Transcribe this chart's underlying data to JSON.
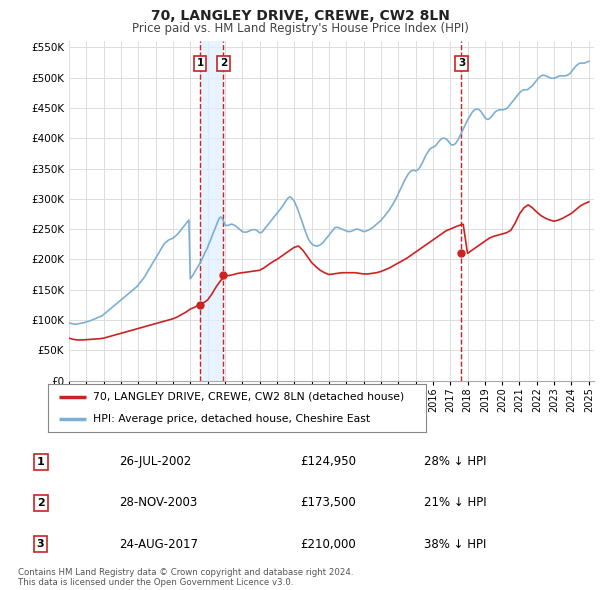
{
  "title": "70, LANGLEY DRIVE, CREWE, CW2 8LN",
  "subtitle": "Price paid vs. HM Land Registry's House Price Index (HPI)",
  "ylim": [
    0,
    560000
  ],
  "yticks": [
    0,
    50000,
    100000,
    150000,
    200000,
    250000,
    300000,
    350000,
    400000,
    450000,
    500000,
    550000
  ],
  "xlim_start": 1995.0,
  "xlim_end": 2025.3,
  "hpi_color": "#7bafd4",
  "price_color": "#cc2222",
  "vline_color": "#cc2222",
  "shade_color": "#ddeeff",
  "background_color": "#ffffff",
  "grid_color": "#dddddd",
  "legend_label_price": "70, LANGLEY DRIVE, CREWE, CW2 8LN (detached house)",
  "legend_label_hpi": "HPI: Average price, detached house, Cheshire East",
  "transactions": [
    {
      "num": 1,
      "date_dec": 2002.57,
      "price": 124950,
      "label": "26-JUL-2002",
      "amount": "£124,950",
      "pct": "28% ↓ HPI"
    },
    {
      "num": 2,
      "date_dec": 2003.91,
      "price": 173500,
      "label": "28-NOV-2003",
      "amount": "£173,500",
      "pct": "21% ↓ HPI"
    },
    {
      "num": 3,
      "date_dec": 2017.65,
      "price": 210000,
      "label": "24-AUG-2017",
      "amount": "£210,000",
      "pct": "38% ↓ HPI"
    }
  ],
  "footnote": "Contains HM Land Registry data © Crown copyright and database right 2024.\nThis data is licensed under the Open Government Licence v3.0.",
  "hpi_data_x": [
    1995.0,
    1995.08,
    1995.17,
    1995.25,
    1995.33,
    1995.42,
    1995.5,
    1995.58,
    1995.67,
    1995.75,
    1995.83,
    1995.92,
    1996.0,
    1996.08,
    1996.17,
    1996.25,
    1996.33,
    1996.42,
    1996.5,
    1996.58,
    1996.67,
    1996.75,
    1996.83,
    1996.92,
    1997.0,
    1997.08,
    1997.17,
    1997.25,
    1997.33,
    1997.42,
    1997.5,
    1997.58,
    1997.67,
    1997.75,
    1997.83,
    1997.92,
    1998.0,
    1998.08,
    1998.17,
    1998.25,
    1998.33,
    1998.42,
    1998.5,
    1998.58,
    1998.67,
    1998.75,
    1998.83,
    1998.92,
    1999.0,
    1999.08,
    1999.17,
    1999.25,
    1999.33,
    1999.42,
    1999.5,
    1999.58,
    1999.67,
    1999.75,
    1999.83,
    1999.92,
    2000.0,
    2000.08,
    2000.17,
    2000.25,
    2000.33,
    2000.42,
    2000.5,
    2000.58,
    2000.67,
    2000.75,
    2000.83,
    2000.92,
    2001.0,
    2001.08,
    2001.17,
    2001.25,
    2001.33,
    2001.42,
    2001.5,
    2001.58,
    2001.67,
    2001.75,
    2001.83,
    2001.92,
    2002.0,
    2002.08,
    2002.17,
    2002.25,
    2002.33,
    2002.42,
    2002.5,
    2002.58,
    2002.67,
    2002.75,
    2002.83,
    2002.92,
    2003.0,
    2003.08,
    2003.17,
    2003.25,
    2003.33,
    2003.42,
    2003.5,
    2003.58,
    2003.67,
    2003.75,
    2003.83,
    2003.92,
    2004.0,
    2004.08,
    2004.17,
    2004.25,
    2004.33,
    2004.42,
    2004.5,
    2004.58,
    2004.67,
    2004.75,
    2004.83,
    2004.92,
    2005.0,
    2005.08,
    2005.17,
    2005.25,
    2005.33,
    2005.42,
    2005.5,
    2005.58,
    2005.67,
    2005.75,
    2005.83,
    2005.92,
    2006.0,
    2006.08,
    2006.17,
    2006.25,
    2006.33,
    2006.42,
    2006.5,
    2006.58,
    2006.67,
    2006.75,
    2006.83,
    2006.92,
    2007.0,
    2007.08,
    2007.17,
    2007.25,
    2007.33,
    2007.42,
    2007.5,
    2007.58,
    2007.67,
    2007.75,
    2007.83,
    2007.92,
    2008.0,
    2008.08,
    2008.17,
    2008.25,
    2008.33,
    2008.42,
    2008.5,
    2008.58,
    2008.67,
    2008.75,
    2008.83,
    2008.92,
    2009.0,
    2009.08,
    2009.17,
    2009.25,
    2009.33,
    2009.42,
    2009.5,
    2009.58,
    2009.67,
    2009.75,
    2009.83,
    2009.92,
    2010.0,
    2010.08,
    2010.17,
    2010.25,
    2010.33,
    2010.42,
    2010.5,
    2010.58,
    2010.67,
    2010.75,
    2010.83,
    2010.92,
    2011.0,
    2011.08,
    2011.17,
    2011.25,
    2011.33,
    2011.42,
    2011.5,
    2011.58,
    2011.67,
    2011.75,
    2011.83,
    2011.92,
    2012.0,
    2012.08,
    2012.17,
    2012.25,
    2012.33,
    2012.42,
    2012.5,
    2012.58,
    2012.67,
    2012.75,
    2012.83,
    2012.92,
    2013.0,
    2013.08,
    2013.17,
    2013.25,
    2013.33,
    2013.42,
    2013.5,
    2013.58,
    2013.67,
    2013.75,
    2013.83,
    2013.92,
    2014.0,
    2014.08,
    2014.17,
    2014.25,
    2014.33,
    2014.42,
    2014.5,
    2014.58,
    2014.67,
    2014.75,
    2014.83,
    2014.92,
    2015.0,
    2015.08,
    2015.17,
    2015.25,
    2015.33,
    2015.42,
    2015.5,
    2015.58,
    2015.67,
    2015.75,
    2015.83,
    2015.92,
    2016.0,
    2016.08,
    2016.17,
    2016.25,
    2016.33,
    2016.42,
    2016.5,
    2016.58,
    2016.67,
    2016.75,
    2016.83,
    2016.92,
    2017.0,
    2017.08,
    2017.17,
    2017.25,
    2017.33,
    2017.42,
    2017.5,
    2017.58,
    2017.67,
    2017.75,
    2017.83,
    2017.92,
    2018.0,
    2018.08,
    2018.17,
    2018.25,
    2018.33,
    2018.42,
    2018.5,
    2018.58,
    2018.67,
    2018.75,
    2018.83,
    2018.92,
    2019.0,
    2019.08,
    2019.17,
    2019.25,
    2019.33,
    2019.42,
    2019.5,
    2019.58,
    2019.67,
    2019.75,
    2019.83,
    2019.92,
    2020.0,
    2020.08,
    2020.17,
    2020.25,
    2020.33,
    2020.42,
    2020.5,
    2020.58,
    2020.67,
    2020.75,
    2020.83,
    2020.92,
    2021.0,
    2021.08,
    2021.17,
    2021.25,
    2021.33,
    2021.42,
    2021.5,
    2021.58,
    2021.67,
    2021.75,
    2021.83,
    2021.92,
    2022.0,
    2022.08,
    2022.17,
    2022.25,
    2022.33,
    2022.42,
    2022.5,
    2022.58,
    2022.67,
    2022.75,
    2022.83,
    2022.92,
    2023.0,
    2023.08,
    2023.17,
    2023.25,
    2023.33,
    2023.42,
    2023.5,
    2023.58,
    2023.67,
    2023.75,
    2023.83,
    2023.92,
    2024.0,
    2024.08,
    2024.17,
    2024.25,
    2024.33,
    2024.42,
    2024.5,
    2024.58,
    2024.67,
    2024.75,
    2024.83,
    2024.92,
    2025.0
  ],
  "hpi_data_y": [
    95000,
    94500,
    94000,
    93500,
    93000,
    93000,
    93500,
    94000,
    94500,
    95000,
    95500,
    96000,
    97000,
    97500,
    98000,
    99000,
    100000,
    101000,
    102000,
    103000,
    104000,
    105000,
    106000,
    107000,
    109000,
    111000,
    113000,
    115000,
    117000,
    119000,
    121000,
    123000,
    125000,
    127000,
    129000,
    131000,
    133000,
    135000,
    137000,
    139000,
    141000,
    143000,
    145000,
    147000,
    149000,
    151000,
    153000,
    155000,
    158000,
    161000,
    164000,
    167000,
    170000,
    174000,
    178000,
    182000,
    186000,
    190000,
    194000,
    198000,
    202000,
    206000,
    210000,
    214000,
    218000,
    222000,
    226000,
    228000,
    230000,
    232000,
    233000,
    234000,
    235000,
    237000,
    239000,
    241000,
    244000,
    247000,
    250000,
    253000,
    256000,
    259000,
    262000,
    265000,
    168000,
    171000,
    175000,
    179000,
    183000,
    187000,
    191000,
    195000,
    200000,
    205000,
    210000,
    215000,
    220000,
    226000,
    232000,
    238000,
    244000,
    250000,
    256000,
    262000,
    268000,
    270000,
    268000,
    263000,
    257000,
    256000,
    256000,
    257000,
    258000,
    258000,
    257000,
    256000,
    254000,
    252000,
    250000,
    248000,
    246000,
    245000,
    245000,
    245000,
    246000,
    247000,
    248000,
    249000,
    249000,
    249000,
    248000,
    246000,
    244000,
    244000,
    246000,
    249000,
    252000,
    255000,
    258000,
    261000,
    264000,
    267000,
    270000,
    273000,
    276000,
    279000,
    282000,
    285000,
    288000,
    292000,
    296000,
    299000,
    302000,
    303000,
    302000,
    299000,
    296000,
    291000,
    285000,
    279000,
    272000,
    265000,
    258000,
    251000,
    244000,
    238000,
    233000,
    229000,
    226000,
    224000,
    223000,
    222000,
    222000,
    223000,
    224000,
    226000,
    228000,
    231000,
    234000,
    237000,
    240000,
    243000,
    246000,
    249000,
    252000,
    253000,
    253000,
    252000,
    251000,
    250000,
    249000,
    248000,
    247000,
    246000,
    246000,
    246000,
    247000,
    248000,
    249000,
    250000,
    250000,
    249000,
    248000,
    247000,
    246000,
    246000,
    247000,
    248000,
    249000,
    251000,
    252000,
    254000,
    256000,
    258000,
    260000,
    262000,
    264000,
    267000,
    270000,
    273000,
    276000,
    279000,
    282000,
    286000,
    290000,
    294000,
    298000,
    303000,
    308000,
    313000,
    318000,
    323000,
    328000,
    333000,
    337000,
    341000,
    344000,
    346000,
    347000,
    347000,
    346000,
    347000,
    349000,
    352000,
    356000,
    361000,
    366000,
    371000,
    375000,
    379000,
    382000,
    384000,
    385000,
    386000,
    388000,
    391000,
    394000,
    397000,
    399000,
    400000,
    400000,
    399000,
    397000,
    394000,
    391000,
    389000,
    389000,
    390000,
    392000,
    396000,
    400000,
    405000,
    410000,
    415000,
    420000,
    425000,
    430000,
    434000,
    438000,
    442000,
    445000,
    447000,
    448000,
    448000,
    447000,
    445000,
    442000,
    438000,
    434000,
    432000,
    431000,
    432000,
    434000,
    437000,
    440000,
    443000,
    445000,
    446000,
    447000,
    447000,
    447000,
    447000,
    448000,
    449000,
    451000,
    454000,
    457000,
    460000,
    463000,
    466000,
    469000,
    472000,
    475000,
    477000,
    479000,
    480000,
    480000,
    480000,
    481000,
    483000,
    485000,
    487000,
    490000,
    493000,
    496000,
    499000,
    501000,
    503000,
    504000,
    504000,
    503000,
    502000,
    501000,
    500000,
    499000,
    499000,
    499000,
    500000,
    501000,
    502000,
    503000,
    503000,
    503000,
    503000,
    503000,
    504000,
    505000,
    507000,
    510000,
    513000,
    516000,
    519000,
    521000,
    523000,
    524000,
    524000,
    524000,
    524000,
    525000,
    526000,
    527000
  ],
  "price_data_x": [
    1995.0,
    1995.25,
    1995.5,
    1995.75,
    1996.0,
    1996.25,
    1996.5,
    1996.75,
    1997.0,
    1997.25,
    1997.5,
    1997.75,
    1998.0,
    1998.25,
    1998.5,
    1998.75,
    1999.0,
    1999.25,
    1999.5,
    1999.75,
    2000.0,
    2000.25,
    2000.5,
    2000.75,
    2001.0,
    2001.25,
    2001.5,
    2001.75,
    2002.0,
    2002.25,
    2002.5,
    2002.75,
    2003.0,
    2003.25,
    2003.5,
    2003.75,
    2004.0,
    2004.25,
    2004.5,
    2004.75,
    2005.0,
    2005.25,
    2005.5,
    2005.75,
    2006.0,
    2006.25,
    2006.5,
    2006.75,
    2007.0,
    2007.25,
    2007.5,
    2007.75,
    2008.0,
    2008.25,
    2008.5,
    2008.75,
    2009.0,
    2009.25,
    2009.5,
    2009.75,
    2010.0,
    2010.25,
    2010.5,
    2010.75,
    2011.0,
    2011.25,
    2011.5,
    2011.75,
    2012.0,
    2012.25,
    2012.5,
    2012.75,
    2013.0,
    2013.25,
    2013.5,
    2013.75,
    2014.0,
    2014.25,
    2014.5,
    2014.75,
    2015.0,
    2015.25,
    2015.5,
    2015.75,
    2016.0,
    2016.25,
    2016.5,
    2016.75,
    2017.0,
    2017.25,
    2017.5,
    2017.75,
    2018.0,
    2018.25,
    2018.5,
    2018.75,
    2019.0,
    2019.25,
    2019.5,
    2019.75,
    2020.0,
    2020.25,
    2020.5,
    2020.75,
    2021.0,
    2021.25,
    2021.5,
    2021.75,
    2022.0,
    2022.25,
    2022.5,
    2022.75,
    2023.0,
    2023.25,
    2023.5,
    2023.75,
    2024.0,
    2024.25,
    2024.5,
    2024.75,
    2025.0
  ],
  "price_data_y": [
    70000,
    68000,
    67000,
    67000,
    67500,
    68000,
    68500,
    69000,
    70000,
    72000,
    74000,
    76000,
    78000,
    80000,
    82000,
    84000,
    86000,
    88000,
    90000,
    92000,
    94000,
    96000,
    98000,
    100000,
    102000,
    105000,
    109000,
    113000,
    118000,
    121000,
    124950,
    128000,
    133000,
    143000,
    155000,
    165000,
    172000,
    173500,
    175000,
    177000,
    178000,
    179000,
    180000,
    181000,
    182000,
    186000,
    191000,
    196000,
    200000,
    205000,
    210000,
    215000,
    220000,
    222000,
    215000,
    205000,
    195000,
    188000,
    182000,
    178000,
    175000,
    176000,
    177000,
    178000,
    178000,
    178000,
    178000,
    177000,
    176000,
    176000,
    177000,
    178000,
    180000,
    183000,
    186000,
    190000,
    194000,
    198000,
    202000,
    207000,
    212000,
    217000,
    222000,
    227000,
    232000,
    237000,
    242000,
    247000,
    250000,
    253000,
    256000,
    258000,
    210000,
    215000,
    220000,
    225000,
    230000,
    235000,
    238000,
    240000,
    242000,
    244000,
    248000,
    260000,
    275000,
    285000,
    290000,
    285000,
    278000,
    272000,
    268000,
    265000,
    263000,
    265000,
    268000,
    272000,
    276000,
    282000,
    288000,
    292000,
    295000
  ]
}
